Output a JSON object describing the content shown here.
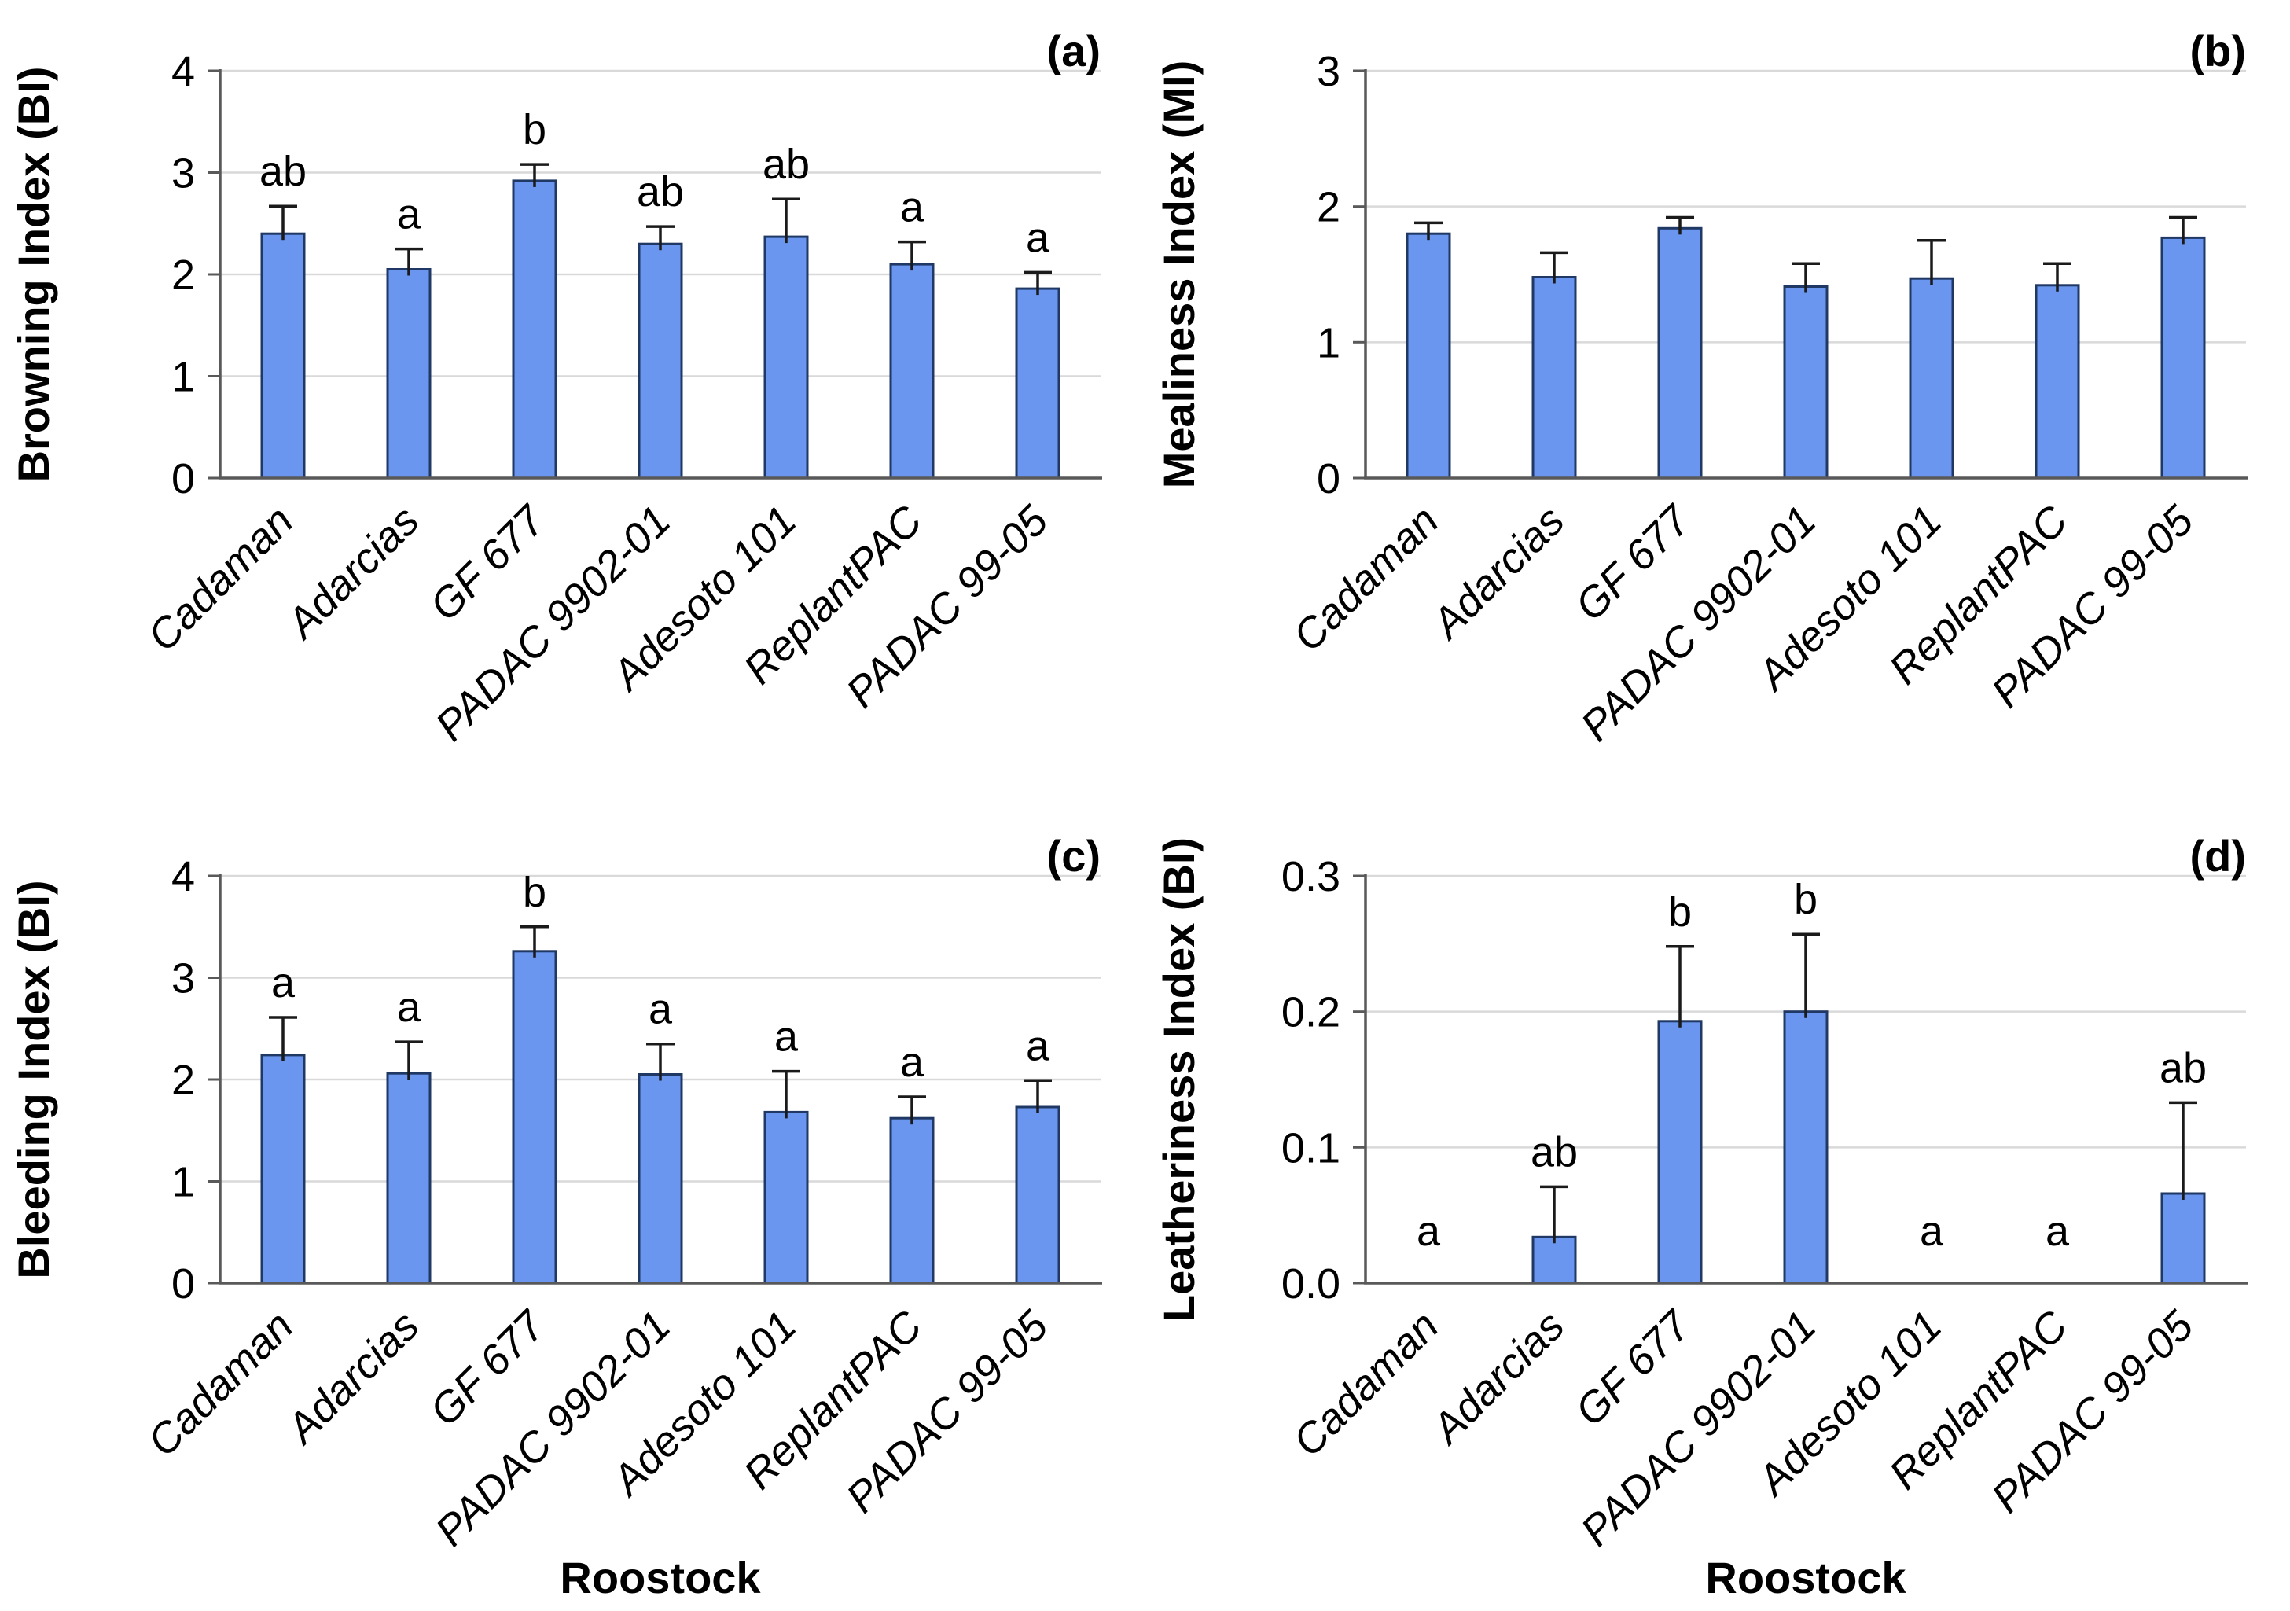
{
  "figure": {
    "background": "#FFFFFF",
    "bar_fill": "#6B96F0",
    "bar_border": "#1F3864",
    "gridline_color": "#D9D9D9",
    "axis_color": "#595959",
    "error_color": "#1A1A1A",
    "text_color": "#000000"
  },
  "categories": [
    "Cadaman",
    "Adarcias",
    "GF 677",
    "PADAC 9902-01",
    "Adesoto 101",
    "ReplantPAC",
    "PADAC 99-05"
  ],
  "chart_data": [
    {
      "type": "bar",
      "panel": "a",
      "panel_label": "(a)",
      "title": "",
      "ylabel": "Browning Index (BI)",
      "xlabel": "",
      "ylim": [
        0,
        4
      ],
      "yticks": [
        "0",
        "1",
        "2",
        "3",
        "4"
      ],
      "grid": true,
      "legend": "none",
      "values": [
        2.4,
        2.05,
        2.92,
        2.3,
        2.37,
        2.1,
        1.86
      ],
      "errors": [
        0.27,
        0.2,
        0.16,
        0.17,
        0.37,
        0.22,
        0.16
      ],
      "sig_letters": [
        "ab",
        "a",
        "b",
        "ab",
        "ab",
        "a",
        "a"
      ]
    },
    {
      "type": "bar",
      "panel": "b",
      "panel_label": "(b)",
      "title": "",
      "ylabel": "Mealiness Index (MI)",
      "xlabel": "",
      "ylim": [
        0,
        3
      ],
      "yticks": [
        "0",
        "1",
        "2",
        "3"
      ],
      "grid": true,
      "legend": "none",
      "values": [
        1.8,
        1.48,
        1.84,
        1.41,
        1.47,
        1.42,
        1.77
      ],
      "errors": [
        0.08,
        0.18,
        0.08,
        0.17,
        0.28,
        0.16,
        0.15
      ],
      "sig_letters": [
        "",
        "",
        "",
        "",
        "",
        "",
        ""
      ]
    },
    {
      "type": "bar",
      "panel": "c",
      "panel_label": "(c)",
      "title": "",
      "ylabel": "Bleeding Index (BI)",
      "xlabel": "Roostock",
      "ylim": [
        0,
        4
      ],
      "yticks": [
        "0",
        "1",
        "2",
        "3",
        "4"
      ],
      "grid": true,
      "legend": "none",
      "values": [
        2.24,
        2.06,
        3.26,
        2.05,
        1.68,
        1.62,
        1.73
      ],
      "errors": [
        0.37,
        0.31,
        0.24,
        0.3,
        0.4,
        0.21,
        0.26
      ],
      "sig_letters": [
        "a",
        "a",
        "b",
        "a",
        "a",
        "a",
        "a"
      ]
    },
    {
      "type": "bar",
      "panel": "d",
      "panel_label": "(d)",
      "title": "",
      "ylabel": "Leatheriness Index (BI)",
      "xlabel": "Roostock",
      "ylim": [
        0,
        0.3
      ],
      "yticks": [
        "0.0",
        "0.1",
        "0.2",
        "0.3"
      ],
      "grid": true,
      "legend": "none",
      "values": [
        0,
        0.034,
        0.193,
        0.2,
        0,
        0,
        0.066
      ],
      "errors": [
        0,
        0.037,
        0.055,
        0.057,
        0,
        0,
        0.067
      ],
      "sig_letters": [
        "a",
        "ab",
        "b",
        "b",
        "a",
        "a",
        "ab"
      ]
    }
  ]
}
